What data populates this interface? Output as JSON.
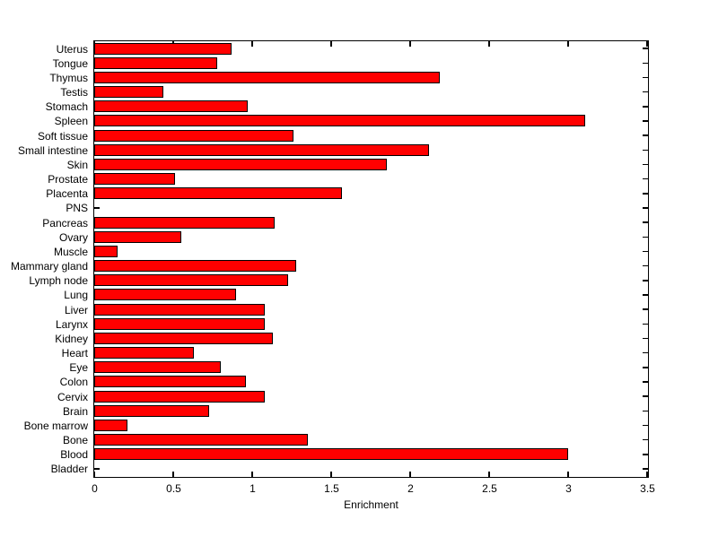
{
  "chart_data": {
    "type": "bar",
    "orientation": "horizontal",
    "order": "top-to-bottom",
    "categories": [
      "Uterus",
      "Tongue",
      "Thymus",
      "Testis",
      "Stomach",
      "Spleen",
      "Soft tissue",
      "Small intestine",
      "Skin",
      "Prostate",
      "Placenta",
      "PNS",
      "Pancreas",
      "Ovary",
      "Muscle",
      "Mammary gland",
      "Lymph node",
      "Lung",
      "Liver",
      "Larynx",
      "Kidney",
      "Heart",
      "Eye",
      "Colon",
      "Cervix",
      "Brain",
      "Bone marrow",
      "Bone",
      "Blood",
      "Bladder"
    ],
    "values": [
      0.87,
      0.78,
      2.19,
      0.44,
      0.97,
      3.11,
      1.26,
      2.12,
      1.85,
      0.51,
      1.57,
      0,
      1.14,
      0.55,
      0.15,
      1.28,
      1.23,
      0.9,
      1.08,
      1.08,
      1.13,
      0.63,
      0.8,
      0.96,
      1.08,
      0.73,
      0.21,
      1.35,
      3.0,
      0
    ],
    "title": "",
    "xlabel": "Enrichment",
    "ylabel": "",
    "xlim": [
      0,
      3.5
    ],
    "xticks": [
      0,
      0.5,
      1,
      1.5,
      2,
      2.5,
      3,
      3.5
    ],
    "xtick_labels": [
      "0",
      "0.5",
      "1",
      "1.5",
      "2",
      "2.5",
      "3",
      "3.5"
    ],
    "grid": false,
    "legend": null,
    "bar_color": "#ff0000",
    "bar_edge_color": "#000000",
    "axis_color": "#000000",
    "background_color": "#ffffff",
    "tick_direction": "in"
  }
}
